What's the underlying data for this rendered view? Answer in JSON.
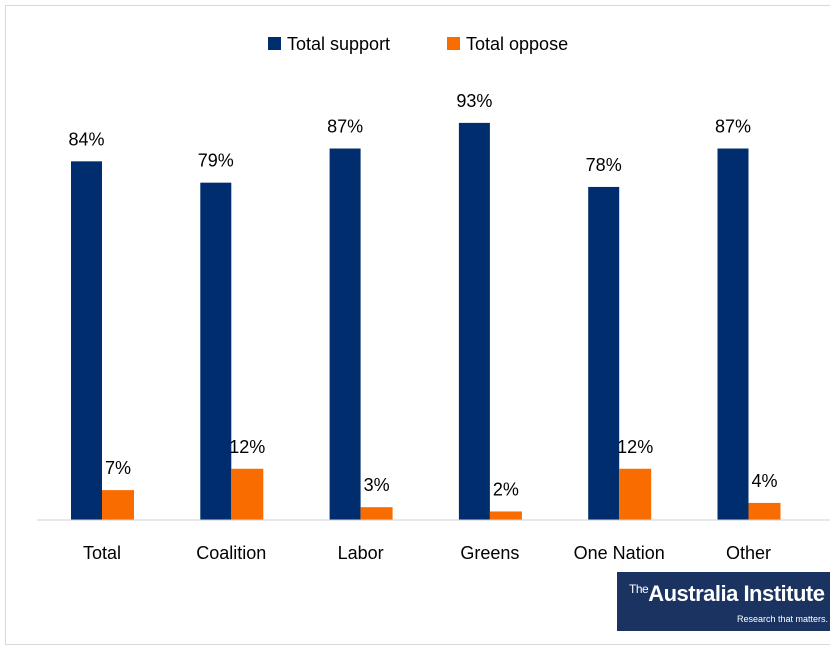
{
  "chart_data": {
    "type": "bar",
    "categories": [
      "Total",
      "Coalition",
      "Labor",
      "Greens",
      "One Nation",
      "Other"
    ],
    "series": [
      {
        "name": "Total support",
        "color": "#002d6e",
        "values": [
          84,
          79,
          87,
          93,
          78,
          87
        ],
        "labels": [
          "84%",
          "79%",
          "87%",
          "93%",
          "78%",
          "87%"
        ]
      },
      {
        "name": "Total oppose",
        "color": "#f96d00",
        "values": [
          7,
          12,
          3,
          2,
          12,
          4
        ],
        "labels": [
          "7%",
          "12%",
          "3%",
          "2%",
          "12%",
          "4%"
        ]
      }
    ],
    "ylim": [
      0,
      100
    ],
    "grid": false,
    "legend_position": "top-center"
  },
  "branding": {
    "logo_main_the": "The",
    "logo_main": "Australia Institute",
    "logo_tagline": "Research that matters."
  }
}
